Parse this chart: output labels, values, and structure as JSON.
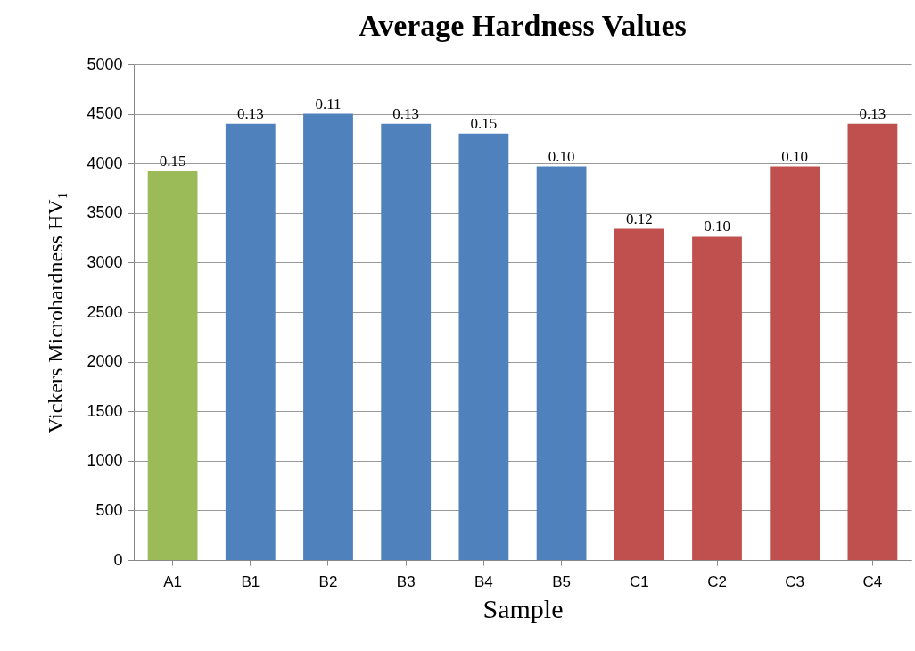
{
  "chart_data": {
    "type": "bar",
    "title": "Average Hardness Values",
    "xlabel": "Sample",
    "ylabel": "Vickers Microhardness HV₁",
    "categories": [
      "A1",
      "B1",
      "B2",
      "B3",
      "B4",
      "B5",
      "C1",
      "C2",
      "C3",
      "C4"
    ],
    "values": [
      3920,
      4400,
      4500,
      4400,
      4300,
      3970,
      3340,
      3260,
      3970,
      4400
    ],
    "colors": [
      "#9bbb59",
      "#4f81bd",
      "#4f81bd",
      "#4f81bd",
      "#4f81bd",
      "#4f81bd",
      "#c0504d",
      "#c0504d",
      "#c0504d",
      "#c0504d"
    ],
    "annotations": [
      {
        "text": "0.15",
        "x": "A1",
        "y": 3920
      },
      {
        "text": "0.13",
        "x": "B1",
        "y": 4400
      },
      {
        "text": "0.11",
        "x": "B2",
        "y": 4500
      },
      {
        "text": "0.13",
        "x": "B3",
        "y": 4400
      },
      {
        "text": "0.15",
        "x": "B4",
        "y": 4300
      },
      {
        "text": "0.10",
        "x": "B5",
        "y": 3970
      },
      {
        "text": "0.12",
        "x": "C1",
        "y": 3340
      },
      {
        "text": "0.10",
        "x": "C2",
        "y": 3260
      },
      {
        "text": "0.10",
        "x": "C3",
        "y": 3970
      },
      {
        "text": "0.13",
        "x": "C4",
        "y": 4400
      }
    ],
    "ylim": [
      0,
      5000
    ],
    "yticks": [
      0,
      500,
      1000,
      1500,
      2000,
      2500,
      3000,
      3500,
      4000,
      4500,
      5000
    ],
    "grid": "y",
    "legend": false
  }
}
